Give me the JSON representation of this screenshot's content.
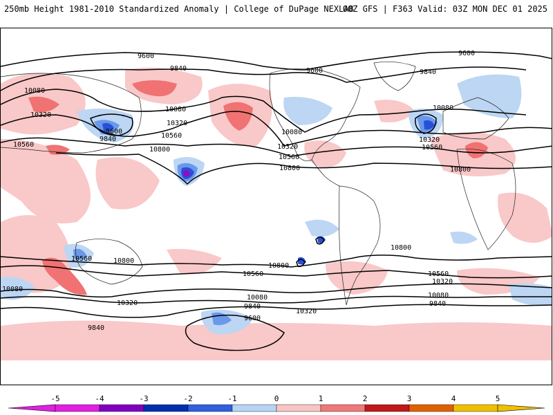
{
  "header": {
    "left_title": "250mb Height 1981-2010 Standardized Anomaly | College of DuPage NEXLAB",
    "right_title": "00Z GFS | F363 Valid: 03Z MON DEC 01 2025"
  },
  "colorbar": {
    "ticks": [
      "-5",
      "-4",
      "-3",
      "-2",
      "-1",
      "0",
      "1",
      "2",
      "3",
      "4",
      "5"
    ],
    "colors": [
      "#e020e0",
      "#8000c0",
      "#0030b0",
      "#3060e0",
      "#b8d4f4",
      "#ffffff",
      "#f8c4c4",
      "#f07878",
      "#c01818",
      "#e06000",
      "#f0c000"
    ]
  },
  "anomaly_colors": {
    "pos1": "#f9c8c8",
    "pos2": "#f07272",
    "neg1": "#bcd6f4",
    "neg2": "#6a98ea",
    "neg3": "#2850d8",
    "neg4": "#8a10c0"
  },
  "contour_labels": {
    "c1": "9600",
    "c2": "9840",
    "c3": "9600",
    "c4": "9600",
    "c5": "9840",
    "c6": "10080",
    "c7": "10320",
    "c8": "10080",
    "c9": "10320",
    "c10": "10560",
    "c11": "10800",
    "c12": "9600",
    "c13": "9840",
    "c14": "10080",
    "c15": "10320",
    "c16": "10560",
    "c17": "10080",
    "c18": "10320",
    "c19": "10560",
    "c20": "10800",
    "c21": "10560",
    "c22": "10800",
    "c23": "10800",
    "c24": "10800",
    "c25": "10560",
    "c26": "10560",
    "c27": "10320",
    "c28": "10080",
    "c29": "10080",
    "c30": "9840",
    "c31": "10320",
    "c32": "9600",
    "c33": "9840",
    "c34": "10080",
    "c35": "10320",
    "c36": "9840"
  }
}
